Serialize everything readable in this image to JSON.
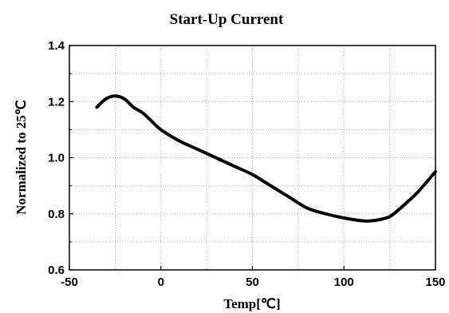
{
  "chart_data": {
    "type": "line",
    "title": "Start-Up Current",
    "xlabel": "Temp[℃]",
    "ylabel": "Normalized to 25℃",
    "xlim": [
      -50,
      150
    ],
    "ylim": [
      0.6,
      1.4
    ],
    "x_ticks": [
      "-50",
      "0",
      "50",
      "100",
      "150"
    ],
    "y_ticks": [
      "0.6",
      "0.8",
      "1.0",
      "1.2",
      "1.4"
    ],
    "grid": true,
    "colors": {
      "line": "#000000",
      "grid": "#999999",
      "frame": "#000000"
    },
    "series": [
      {
        "x": [
          -35,
          -30,
          -25,
          -20,
          -15,
          -10,
          -5,
          0,
          10,
          20,
          30,
          40,
          50,
          60,
          70,
          80,
          90,
          100,
          110,
          115,
          120,
          125,
          130,
          140,
          150
        ],
        "y": [
          1.18,
          1.21,
          1.22,
          1.21,
          1.18,
          1.16,
          1.13,
          1.1,
          1.06,
          1.03,
          1.0,
          0.97,
          0.94,
          0.9,
          0.86,
          0.82,
          0.8,
          0.785,
          0.775,
          0.775,
          0.78,
          0.79,
          0.815,
          0.875,
          0.95
        ]
      }
    ]
  }
}
